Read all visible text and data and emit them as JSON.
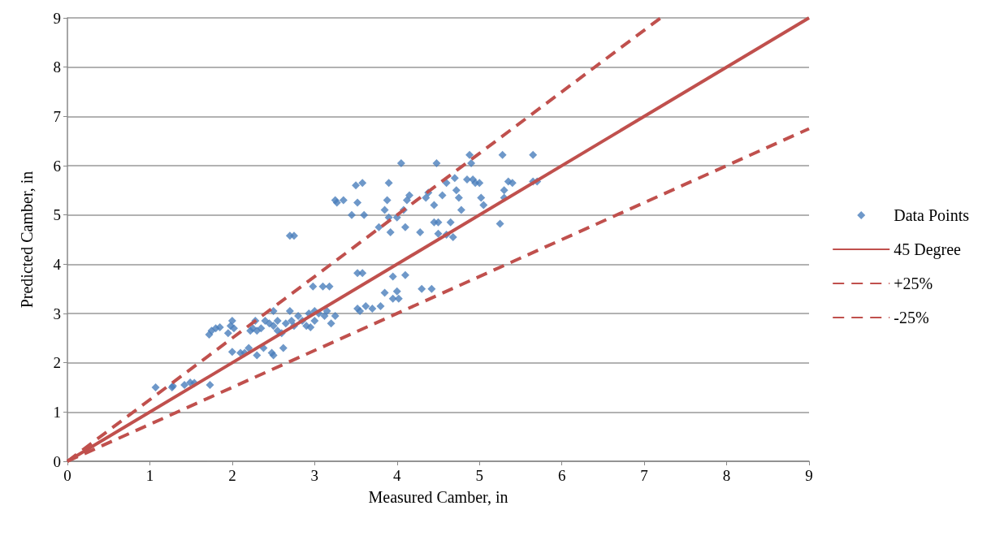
{
  "chart_data": {
    "type": "scatter",
    "xlabel": "Measured Camber, in",
    "ylabel": "Predicted Camber, in",
    "xlim": [
      0,
      9
    ],
    "ylim": [
      0,
      9
    ],
    "xticks": [
      0,
      1,
      2,
      3,
      4,
      5,
      6,
      7,
      8,
      9
    ],
    "yticks": [
      0,
      1,
      2,
      3,
      4,
      5,
      6,
      7,
      8,
      9
    ],
    "grid": "y",
    "legend": "right",
    "series": [
      {
        "name": "Data Points",
        "type": "scatter",
        "marker": "diamond",
        "color": "#4a7ebb",
        "x": [
          1.07,
          1.27,
          1.28,
          1.42,
          1.49,
          1.54,
          1.73,
          1.72,
          1.75,
          1.8,
          1.85,
          1.95,
          1.98,
          2.0,
          2.02,
          2.0,
          2.1,
          2.15,
          2.2,
          2.22,
          2.25,
          2.28,
          2.3,
          2.3,
          2.35,
          2.38,
          2.4,
          2.45,
          2.48,
          2.5,
          2.5,
          2.5,
          2.55,
          2.55,
          2.6,
          2.62,
          2.65,
          2.7,
          2.7,
          2.75,
          2.72,
          2.75,
          2.8,
          2.85,
          2.9,
          2.93,
          2.95,
          2.98,
          3.0,
          3.0,
          3.05,
          3.1,
          3.12,
          3.15,
          3.18,
          3.2,
          3.25,
          3.25,
          3.27,
          3.35,
          3.45,
          3.5,
          3.52,
          3.52,
          3.55,
          3.52,
          3.58,
          3.58,
          3.6,
          3.62,
          3.7,
          3.78,
          3.8,
          3.85,
          3.85,
          3.88,
          3.9,
          3.9,
          3.92,
          3.95,
          3.95,
          4.0,
          4.02,
          4.0,
          4.05,
          4.08,
          4.1,
          4.1,
          4.12,
          4.15,
          4.28,
          4.3,
          4.35,
          4.38,
          4.42,
          4.45,
          4.45,
          4.48,
          4.5,
          4.5,
          4.55,
          4.6,
          4.6,
          4.65,
          4.68,
          4.7,
          4.72,
          4.75,
          4.78,
          4.85,
          4.88,
          4.9,
          4.92,
          4.95,
          5.0,
          5.02,
          5.05,
          5.25,
          5.28,
          5.3,
          5.3,
          5.35,
          5.4,
          5.65,
          5.65,
          5.7
        ],
        "values": [
          1.5,
          1.5,
          1.53,
          1.55,
          1.6,
          1.59,
          1.55,
          2.57,
          2.65,
          2.7,
          2.72,
          2.6,
          2.75,
          2.85,
          2.7,
          2.22,
          2.2,
          2.2,
          2.3,
          2.65,
          2.7,
          2.85,
          2.15,
          2.65,
          2.7,
          2.3,
          2.85,
          2.8,
          2.2,
          2.15,
          2.75,
          3.05,
          2.85,
          2.65,
          2.6,
          2.3,
          2.8,
          3.05,
          4.58,
          4.58,
          2.85,
          2.75,
          2.95,
          2.85,
          2.75,
          3.0,
          2.72,
          3.55,
          3.05,
          2.85,
          3.0,
          3.55,
          2.95,
          3.05,
          3.55,
          2.8,
          2.95,
          5.3,
          5.25,
          5.3,
          5.0,
          5.6,
          5.25,
          3.1,
          3.05,
          3.82,
          3.82,
          5.65,
          5.0,
          3.15,
          3.1,
          4.75,
          3.15,
          5.1,
          3.42,
          5.3,
          5.65,
          4.95,
          4.65,
          3.3,
          3.75,
          3.45,
          3.3,
          4.95,
          6.05,
          5.1,
          4.75,
          3.78,
          5.3,
          5.4,
          4.65,
          3.5,
          5.35,
          5.45,
          3.5,
          5.2,
          4.85,
          6.05,
          4.85,
          4.62,
          5.4,
          5.65,
          4.6,
          4.85,
          4.55,
          5.75,
          5.5,
          5.35,
          5.1,
          5.72,
          6.22,
          6.05,
          5.72,
          5.65,
          5.65,
          5.35,
          5.2,
          4.82,
          6.22,
          5.5,
          5.35,
          5.68,
          5.65,
          6.22,
          5.68,
          5.68
        ]
      },
      {
        "name": "45 Degree",
        "type": "line",
        "line_style": "solid",
        "color": "#c0504d",
        "x": [
          0,
          9
        ],
        "values": [
          0,
          9
        ]
      },
      {
        "name": "+25%",
        "type": "line",
        "line_style": "dashed",
        "color": "#c0504d",
        "x": [
          0,
          7.2
        ],
        "values": [
          0,
          9
        ]
      },
      {
        "name": "-25%",
        "type": "line",
        "line_style": "dashed",
        "color": "#c0504d",
        "x": [
          0,
          9
        ],
        "values": [
          0,
          6.75
        ]
      }
    ]
  }
}
